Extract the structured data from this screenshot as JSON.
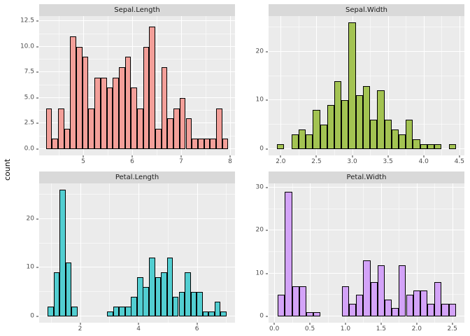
{
  "figure": {
    "ylabel": "count",
    "background": "#FFFFFF",
    "panel_bg": "#EBEBEB",
    "strip_bg": "#D9D9D9",
    "grid_color": "#FFFFFF",
    "bar_border": "#000000"
  },
  "chart_data": {
    "type": "bar",
    "subtype": "faceted-histograms",
    "layout": "2x2",
    "ylabel": "count",
    "legend": "none",
    "grid": "on",
    "panels": [
      {
        "title": "Sepal.Length",
        "fill": "#F39F99",
        "x_range": [
          4.1,
          8.1
        ],
        "y_range": [
          -0.62,
          13.0
        ],
        "bin_width": 0.1241,
        "x_ticks": [
          5,
          6,
          7,
          8
        ],
        "x_tick_labels": [
          "5",
          "6",
          "7",
          "8"
        ],
        "y_ticks": [
          0,
          2.5,
          5,
          7.5,
          10,
          12.5
        ],
        "y_tick_labels": [
          "0.0",
          "2.5",
          "5.0",
          "7.5",
          "10.0",
          "12.5"
        ],
        "bins": [
          [
            4.3,
            4
          ],
          [
            4.424,
            1
          ],
          [
            4.548,
            4
          ],
          [
            4.672,
            2
          ],
          [
            4.797,
            11
          ],
          [
            4.921,
            10
          ],
          [
            5.045,
            9
          ],
          [
            5.169,
            4
          ],
          [
            5.293,
            7
          ],
          [
            5.417,
            7
          ],
          [
            5.541,
            6
          ],
          [
            5.666,
            7
          ],
          [
            5.79,
            8
          ],
          [
            5.914,
            9
          ],
          [
            6.038,
            6
          ],
          [
            6.162,
            4
          ],
          [
            6.286,
            10
          ],
          [
            6.41,
            12
          ],
          [
            6.534,
            2
          ],
          [
            6.659,
            8
          ],
          [
            6.783,
            3
          ],
          [
            6.907,
            4
          ],
          [
            7.031,
            5
          ],
          [
            7.155,
            3
          ],
          [
            7.279,
            1
          ],
          [
            7.403,
            1
          ],
          [
            7.528,
            1
          ],
          [
            7.652,
            1
          ],
          [
            7.776,
            4
          ],
          [
            7.9,
            1
          ]
        ]
      },
      {
        "title": "Sepal.Width",
        "fill": "#A3C352",
        "x_range": [
          1.83,
          4.57
        ],
        "y_range": [
          -1.3,
          27.3
        ],
        "bin_width": 0.1,
        "x_ticks": [
          2.0,
          2.5,
          3.0,
          3.5,
          4.0,
          4.5
        ],
        "x_tick_labels": [
          "2.0",
          "2.5",
          "3.0",
          "3.5",
          "4.0",
          "4.5"
        ],
        "y_ticks": [
          0,
          10,
          20
        ],
        "y_tick_labels": [
          "0",
          "10",
          "20"
        ],
        "bins": [
          [
            2.0,
            1
          ],
          [
            2.2,
            3
          ],
          [
            2.3,
            4
          ],
          [
            2.4,
            3
          ],
          [
            2.5,
            8
          ],
          [
            2.6,
            5
          ],
          [
            2.7,
            9
          ],
          [
            2.8,
            14
          ],
          [
            2.9,
            10
          ],
          [
            3.0,
            26
          ],
          [
            3.1,
            11
          ],
          [
            3.2,
            13
          ],
          [
            3.3,
            6
          ],
          [
            3.4,
            12
          ],
          [
            3.5,
            6
          ],
          [
            3.6,
            4
          ],
          [
            3.7,
            3
          ],
          [
            3.8,
            6
          ],
          [
            3.9,
            2
          ],
          [
            4.0,
            1
          ],
          [
            4.1,
            1
          ],
          [
            4.2,
            1
          ],
          [
            4.4,
            1
          ]
        ]
      },
      {
        "title": "Petal.Length",
        "fill": "#52CED1",
        "x_range": [
          0.6,
          7.3
        ],
        "y_range": [
          -1.3,
          27.3
        ],
        "bin_width": 0.2034,
        "x_ticks": [
          2,
          4,
          6
        ],
        "x_tick_labels": [
          "2",
          "4",
          "6"
        ],
        "y_ticks": [
          0,
          10,
          20
        ],
        "y_tick_labels": [
          "0",
          "10",
          "20"
        ],
        "bins": [
          [
            1.0,
            2
          ],
          [
            1.203,
            9
          ],
          [
            1.407,
            26
          ],
          [
            1.61,
            11
          ],
          [
            1.814,
            2
          ],
          [
            3.034,
            1
          ],
          [
            3.238,
            2
          ],
          [
            3.441,
            2
          ],
          [
            3.645,
            2
          ],
          [
            3.848,
            4
          ],
          [
            4.052,
            8
          ],
          [
            4.255,
            6
          ],
          [
            4.459,
            12
          ],
          [
            4.662,
            8
          ],
          [
            4.866,
            9
          ],
          [
            5.069,
            12
          ],
          [
            5.272,
            4
          ],
          [
            5.476,
            5
          ],
          [
            5.679,
            9
          ],
          [
            5.883,
            5
          ],
          [
            6.086,
            5
          ],
          [
            6.29,
            1
          ],
          [
            6.493,
            1
          ],
          [
            6.697,
            3
          ],
          [
            6.9,
            1
          ]
        ]
      },
      {
        "title": "Petal.Width",
        "fill": "#D3A3F8",
        "x_range": [
          -0.08,
          2.67
        ],
        "y_range": [
          -1.45,
          31.0
        ],
        "bin_width": 0.1,
        "x_ticks": [
          0.0,
          0.5,
          1.0,
          1.5,
          2.0,
          2.5
        ],
        "x_tick_labels": [
          "0.0",
          "0.5",
          "1.0",
          "1.5",
          "2.0",
          "2.5"
        ],
        "y_ticks": [
          0,
          10,
          20,
          30
        ],
        "y_tick_labels": [
          "0",
          "10",
          "20",
          "30"
        ],
        "bins": [
          [
            0.1,
            5
          ],
          [
            0.2,
            29
          ],
          [
            0.3,
            7
          ],
          [
            0.4,
            7
          ],
          [
            0.5,
            1
          ],
          [
            0.6,
            1
          ],
          [
            1.0,
            7
          ],
          [
            1.1,
            3
          ],
          [
            1.2,
            5
          ],
          [
            1.3,
            13
          ],
          [
            1.4,
            8
          ],
          [
            1.5,
            12
          ],
          [
            1.6,
            4
          ],
          [
            1.7,
            2
          ],
          [
            1.8,
            12
          ],
          [
            1.9,
            5
          ],
          [
            2.0,
            6
          ],
          [
            2.1,
            6
          ],
          [
            2.2,
            3
          ],
          [
            2.3,
            8
          ],
          [
            2.4,
            3
          ],
          [
            2.5,
            3
          ]
        ]
      }
    ]
  }
}
